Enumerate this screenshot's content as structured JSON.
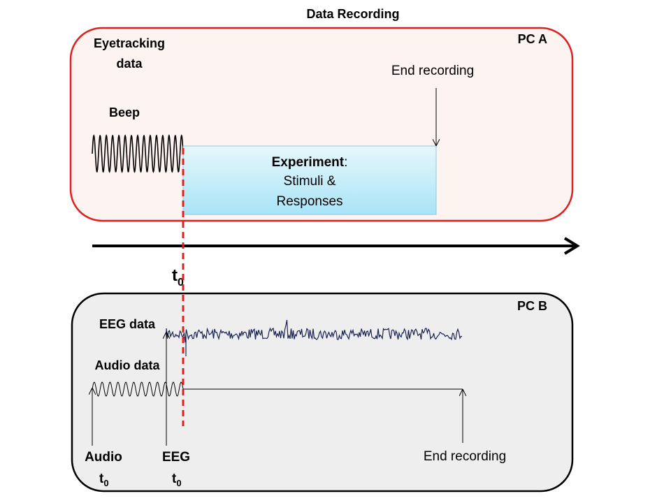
{
  "title": "Data Recording",
  "pc_a": {
    "label": "PC A",
    "eyetracking_line1": "Eyetracking",
    "eyetracking_line2": "data",
    "beep": "Beep",
    "end_recording": "End recording",
    "experiment": {
      "bold": "Experiment",
      "colon": ":",
      "line2": "Stimuli &",
      "line3": "Responses"
    }
  },
  "t0": {
    "base": "t",
    "sub": "0"
  },
  "pc_b": {
    "label": "PC B",
    "eeg_data": "EEG data",
    "audio_data": "Audio data",
    "audio_t0_line1": "Audio",
    "eeg_t0_line1": "EEG",
    "t0_base": "t",
    "t0_sub": "0",
    "end_recording": "End recording"
  },
  "colors": {
    "pc_a_border": "#e02020",
    "pc_a_fill": "#fdf3f1",
    "pc_b_border": "#000000",
    "pc_b_fill": "#eeeeee",
    "experiment_fill_top": "#e6f7fc",
    "experiment_fill_bottom": "#a9e4f7",
    "experiment_border": "#8fc9de",
    "sync_line": "#e02020",
    "eeg_signal": "#1c2350"
  }
}
